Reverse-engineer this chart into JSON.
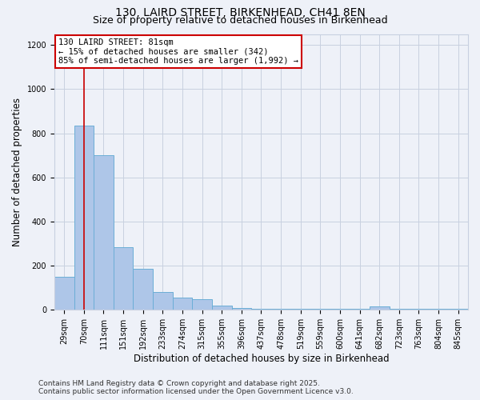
{
  "title1": "130, LAIRD STREET, BIRKENHEAD, CH41 8EN",
  "title2": "Size of property relative to detached houses in Birkenhead",
  "xlabel": "Distribution of detached houses by size in Birkenhead",
  "ylabel": "Number of detached properties",
  "bin_labels": [
    "29sqm",
    "70sqm",
    "111sqm",
    "151sqm",
    "192sqm",
    "233sqm",
    "274sqm",
    "315sqm",
    "355sqm",
    "396sqm",
    "437sqm",
    "478sqm",
    "519sqm",
    "559sqm",
    "600sqm",
    "641sqm",
    "682sqm",
    "723sqm",
    "763sqm",
    "804sqm",
    "845sqm"
  ],
  "bar_heights": [
    150,
    835,
    700,
    285,
    185,
    80,
    57,
    47,
    20,
    10,
    5,
    5,
    5,
    5,
    5,
    5,
    15,
    5,
    5,
    5,
    5
  ],
  "bar_color": "#aec6e8",
  "bar_edge_color": "#6baed6",
  "vline_x": 1.0,
  "vline_color": "#cc0000",
  "annotation_line1": "130 LAIRD STREET: 81sqm",
  "annotation_line2": "← 15% of detached houses are smaller (342)",
  "annotation_line3": "85% of semi-detached houses are larger (1,992) →",
  "annotation_box_color": "#ffffff",
  "annotation_box_edge": "#cc0000",
  "ylim": [
    0,
    1250
  ],
  "yticks": [
    0,
    200,
    400,
    600,
    800,
    1000,
    1200
  ],
  "footer1": "Contains HM Land Registry data © Crown copyright and database right 2025.",
  "footer2": "Contains public sector information licensed under the Open Government Licence v3.0.",
  "bg_color": "#eef1f8",
  "grid_color": "#c8d0e0",
  "title_fontsize": 10,
  "subtitle_fontsize": 9,
  "tick_fontsize": 7,
  "label_fontsize": 8.5,
  "footer_fontsize": 6.5
}
